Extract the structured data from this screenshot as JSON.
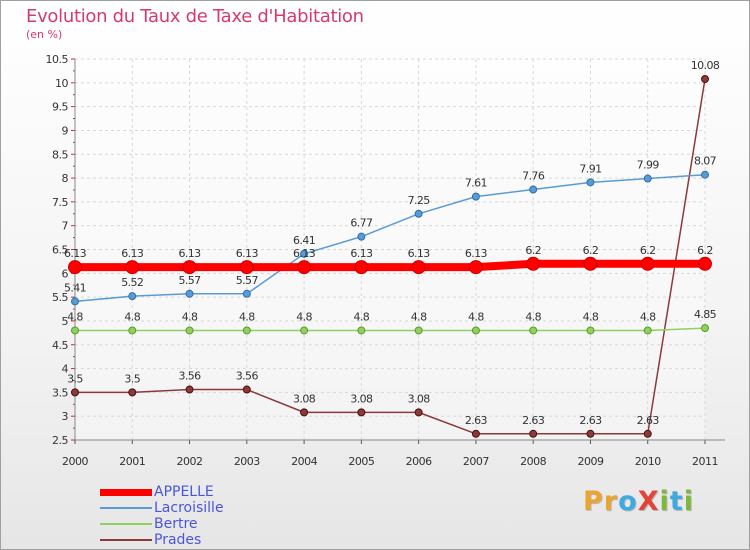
{
  "title": "Evolution du Taux de Taxe d'Habitation",
  "subtitle": "(en %)",
  "logo": {
    "text": "ProXiti",
    "letters": [
      {
        "ch": "P",
        "color": "#e8a531"
      },
      {
        "ch": "r",
        "color": "#e8a531"
      },
      {
        "ch": "o",
        "color": "#3fa9e0"
      },
      {
        "ch": "X",
        "color": "#e2433b"
      },
      {
        "ch": "i",
        "color": "#7cb93a"
      },
      {
        "ch": "t",
        "color": "#3fa9e0"
      },
      {
        "ch": "i",
        "color": "#7cb93a"
      }
    ]
  },
  "chart_data": {
    "type": "line",
    "title": "Evolution du Taux de Taxe d'Habitation",
    "subtitle": "(en %)",
    "x": [
      "2000",
      "2001",
      "2002",
      "2003",
      "2004",
      "2005",
      "2006",
      "2007",
      "2008",
      "2009",
      "2010",
      "2011"
    ],
    "ylim": [
      2.5,
      10.5
    ],
    "yticks": [
      "2.5",
      "3",
      "3.5",
      "4",
      "4.5",
      "5",
      "5.5",
      "6",
      "6.5",
      "7",
      "7.5",
      "8",
      "8.5",
      "9",
      "9.5",
      "10",
      "10.5"
    ],
    "grid": true,
    "legend": "bottom-left",
    "series": [
      {
        "name": "APPELLE",
        "color": "#ff0000",
        "values": [
          6.13,
          6.13,
          6.13,
          6.13,
          6.13,
          6.13,
          6.13,
          6.13,
          6.2,
          6.2,
          6.2,
          6.2
        ],
        "labels": [
          "6.13",
          "6.13",
          "6.13",
          "6.13",
          "6.13",
          "6.13",
          "6.13",
          "6.13",
          "6.2",
          "6.2",
          "6.2",
          "6.2"
        ]
      },
      {
        "name": "Lacroisille",
        "color": "#5b9bd5",
        "values": [
          5.41,
          5.52,
          5.57,
          5.57,
          6.41,
          6.77,
          7.25,
          7.61,
          7.76,
          7.91,
          7.99,
          8.07
        ],
        "labels": [
          "5.41",
          "5.52",
          "5.57",
          "5.57",
          "6.41",
          "6.77",
          "7.25",
          "7.61",
          "7.76",
          "7.91",
          "7.99",
          "8.07"
        ]
      },
      {
        "name": "Bertre",
        "color": "#90d060",
        "values": [
          4.8,
          4.8,
          4.8,
          4.8,
          4.8,
          4.8,
          4.8,
          4.8,
          4.8,
          4.8,
          4.8,
          4.85
        ],
        "labels": [
          "4.8",
          "4.8",
          "4.8",
          "4.8",
          "4.8",
          "4.8",
          "4.8",
          "4.8",
          "4.8",
          "4.8",
          "4.8",
          "4.85"
        ]
      },
      {
        "name": "Prades",
        "color": "#8b3a3a",
        "values": [
          3.5,
          3.5,
          3.56,
          3.56,
          3.08,
          3.08,
          3.08,
          2.63,
          2.63,
          2.63,
          2.63,
          10.08
        ],
        "labels": [
          "3.5",
          "3.5",
          "3.56",
          "3.56",
          "3.08",
          "3.08",
          "3.08",
          "2.63",
          "2.63",
          "2.63",
          "2.63",
          "10.08"
        ]
      }
    ]
  }
}
